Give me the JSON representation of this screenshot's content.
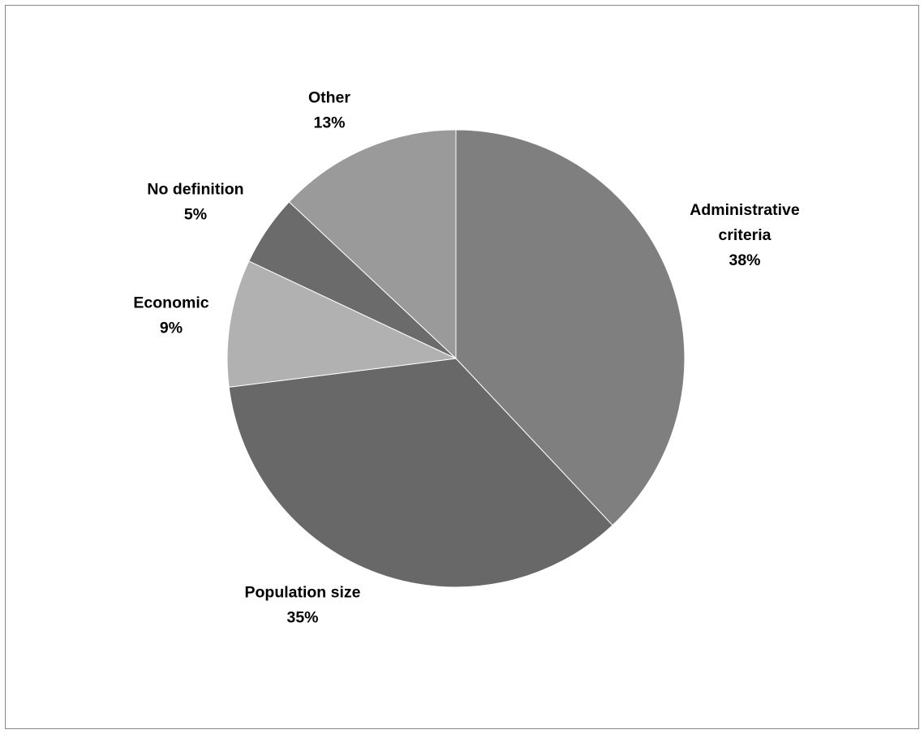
{
  "chart_data": {
    "type": "pie",
    "start": "12 o'clock",
    "direction": "clockwise",
    "slices": [
      {
        "label": [
          "Administrative",
          "criteria"
        ],
        "percent_text": "38%",
        "value": 38,
        "color": "#7f7f7f"
      },
      {
        "label": [
          "Population size"
        ],
        "percent_text": "35%",
        "value": 35,
        "color": "#686868"
      },
      {
        "label": [
          "Economic"
        ],
        "percent_text": "9%",
        "value": 9,
        "color": "#b1b1b1"
      },
      {
        "label": [
          "No definition"
        ],
        "percent_text": "5%",
        "value": 5,
        "color": "#6b6b6b"
      },
      {
        "label": [
          "Other"
        ],
        "percent_text": "13%",
        "value": 13,
        "color": "#9a9a9a"
      }
    ],
    "legend": false,
    "border_color": "#868686"
  }
}
